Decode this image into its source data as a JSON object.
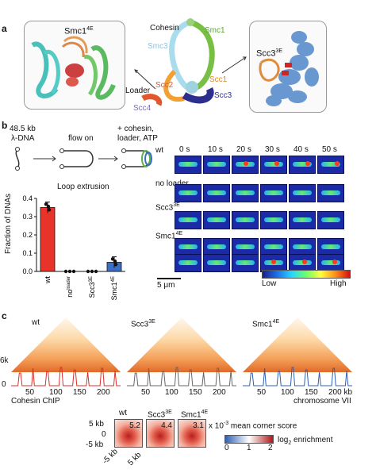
{
  "panels": {
    "a": "a",
    "b": "b",
    "c": "c"
  },
  "panel_a": {
    "left_label": "Smc1",
    "left_label_sup": "4E",
    "right_label": "Scc3",
    "right_label_sup": "3E",
    "cohesin": "Cohesin",
    "smc3": "Smc3",
    "smc1": "Smc1",
    "scc1": "Scc1",
    "scc2": "Scc2",
    "loader": "Loader",
    "scc4": "Scc4",
    "scc3": "Scc3"
  },
  "panel_b": {
    "dna_length": "48.5 kb",
    "dna_name": "λ-DNA",
    "flow": "flow on",
    "added_line1": "+ cohesin,",
    "added_line2": "loader, ATP",
    "plot_title": "Loop extrusion",
    "ylabel": "Fraction of DNAs",
    "time_labels": [
      "0 s",
      "10 s",
      "20 s",
      "30 s",
      "40 s",
      "50 s"
    ],
    "row_labels": [
      "wt",
      "no loader",
      "Scc3",
      "Smc1"
    ],
    "row_sups": [
      "",
      "",
      "3E",
      "4E"
    ],
    "scalebar": "5 μm",
    "colorbar_low": "Low",
    "colorbar_high": "High"
  },
  "chart_data": {
    "type": "bar",
    "title": "Loop extrusion",
    "ylabel": "Fraction of DNAs",
    "categories": [
      "wt",
      "no loader",
      "Scc3 3E",
      "Smc1 4E"
    ],
    "values": [
      0.35,
      0.0,
      0.0,
      0.05
    ],
    "errors": [
      0.03,
      0.0,
      0.0,
      0.03
    ],
    "ylim": [
      0,
      0.4
    ],
    "yticks": [
      "0.0",
      "0.1",
      "0.2",
      "0.3",
      "0.4"
    ],
    "colors": [
      "#e8332a",
      "#222222",
      "#222222",
      "#3b6fc4"
    ]
  },
  "panel_c": {
    "map_labels": [
      "wt",
      "Scc3",
      "Smc1"
    ],
    "map_sups": [
      "",
      "3E",
      "4E"
    ],
    "scale_top": "6k",
    "scale_bottom": "0",
    "x_ticks": [
      "50",
      "100",
      "150",
      "200"
    ],
    "x_ticks_last": [
      "50",
      "100",
      "150",
      "200 kb"
    ],
    "chip_label": "Cohesin ChIP",
    "chrom_label": "chromosome VII",
    "corner_labels": [
      "wt",
      "Scc3",
      "Smc1"
    ],
    "corner_sups": [
      "",
      "3E",
      "4E"
    ],
    "corner_scores": [
      "5.2",
      "4.4",
      "3.1"
    ],
    "score_note": "x 10",
    "score_note_exp": "-3",
    "score_note_rest": " mean corner score",
    "y_ticks": [
      "5 kb",
      "0",
      "-5 kb"
    ],
    "x_bottom": [
      "-5 kb",
      "5 kb"
    ],
    "enrich_ticks": [
      "0",
      "1",
      "2"
    ],
    "enrich_label": "log",
    "enrich_sub": "2",
    "enrich_rest": " enrichment",
    "chip_colors": [
      "#d9302a",
      "#666666",
      "#2f5fb3"
    ]
  }
}
